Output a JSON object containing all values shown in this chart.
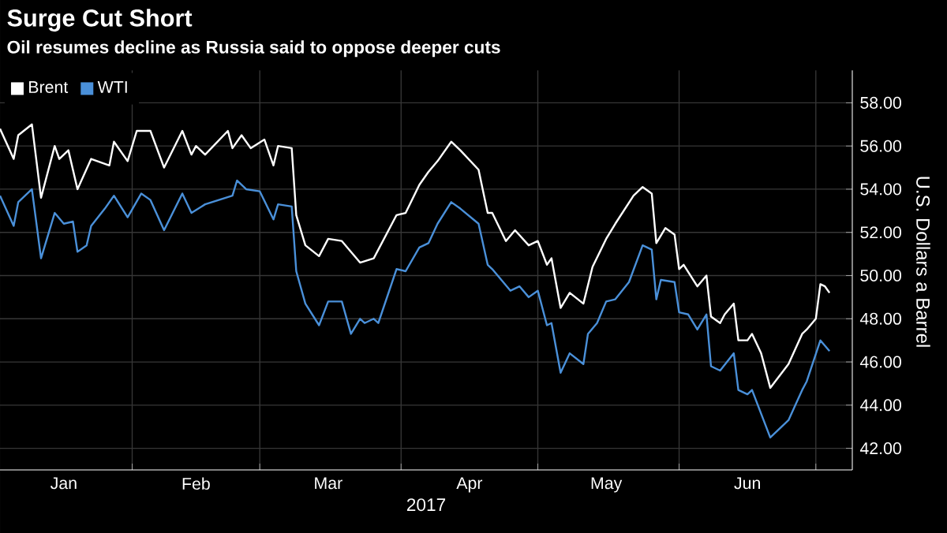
{
  "chart_data": {
    "type": "line",
    "title": "Surge Cut Short",
    "subtitle": "Oil resumes decline as Russia said to oppose deeper cuts",
    "xlabel": "2017",
    "ylabel": "U.S. Dollars a Barrel",
    "xlim": [
      "2017-01-03",
      "2017-07-09"
    ],
    "ylim": [
      41,
      59.5
    ],
    "xticks": [
      {
        "value": "2017-02-01",
        "label": null
      },
      {
        "value": "2017-03-01",
        "label": null
      },
      {
        "value": "2017-04-01",
        "label": null
      },
      {
        "value": "2017-05-01",
        "label": null
      },
      {
        "value": "2017-06-01",
        "label": null
      },
      {
        "value": "2017-07-01",
        "label": null
      },
      {
        "value": "2017-01-17",
        "label": "Jan"
      },
      {
        "value": "2017-02-15",
        "label": "Feb"
      },
      {
        "value": "2017-03-16",
        "label": "Mar"
      },
      {
        "value": "2017-04-16",
        "label": "Apr"
      },
      {
        "value": "2017-05-16",
        "label": "May"
      },
      {
        "value": "2017-06-16",
        "label": "Jun"
      }
    ],
    "yticks": [
      {
        "value": 42,
        "label": "42.00"
      },
      {
        "value": 44,
        "label": "44.00"
      },
      {
        "value": 46,
        "label": "46.00"
      },
      {
        "value": 48,
        "label": "48.00"
      },
      {
        "value": 50,
        "label": "50.00"
      },
      {
        "value": 52,
        "label": "52.00"
      },
      {
        "value": 54,
        "label": "54.00"
      },
      {
        "value": 56,
        "label": "56.00"
      },
      {
        "value": 58,
        "label": "58.00"
      }
    ],
    "grid": true,
    "legend": "top left",
    "series": [
      {
        "name": "Brent",
        "color": "#ffffff",
        "x": [
          "2017-01-03",
          "2017-01-06",
          "2017-01-07",
          "2017-01-10",
          "2017-01-12",
          "2017-01-15",
          "2017-01-16",
          "2017-01-18",
          "2017-01-20",
          "2017-01-23",
          "2017-01-27",
          "2017-01-28",
          "2017-01-31",
          "2017-02-02",
          "2017-02-05",
          "2017-02-08",
          "2017-02-12",
          "2017-02-14",
          "2017-02-15",
          "2017-02-17",
          "2017-02-22",
          "2017-02-23",
          "2017-02-25",
          "2017-02-27",
          "2017-03-02",
          "2017-03-04",
          "2017-03-05",
          "2017-03-08",
          "2017-03-09",
          "2017-03-11",
          "2017-03-14",
          "2017-03-16",
          "2017-03-19",
          "2017-03-23",
          "2017-03-26",
          "2017-03-31",
          "2017-04-02",
          "2017-04-05",
          "2017-04-07",
          "2017-04-09",
          "2017-04-12",
          "2017-04-14",
          "2017-04-18",
          "2017-04-20",
          "2017-04-21",
          "2017-04-24",
          "2017-04-26",
          "2017-04-29",
          "2017-05-01",
          "2017-05-03",
          "2017-05-04",
          "2017-05-06",
          "2017-05-08",
          "2017-05-11",
          "2017-05-13",
          "2017-05-16",
          "2017-05-18",
          "2017-05-22",
          "2017-05-24",
          "2017-05-26",
          "2017-05-27",
          "2017-05-29",
          "2017-05-31",
          "2017-06-01",
          "2017-06-02",
          "2017-06-05",
          "2017-06-07",
          "2017-06-08",
          "2017-06-10",
          "2017-06-11",
          "2017-06-13",
          "2017-06-14",
          "2017-06-16",
          "2017-06-17",
          "2017-06-19",
          "2017-06-21",
          "2017-06-25",
          "2017-06-28",
          "2017-06-29",
          "2017-07-01",
          "2017-07-02",
          "2017-07-03",
          "2017-07-04"
        ],
        "values": [
          56.8,
          55.4,
          56.5,
          57.0,
          53.6,
          56.0,
          55.4,
          55.8,
          54.0,
          55.4,
          55.1,
          56.2,
          55.3,
          56.7,
          56.7,
          55.0,
          56.7,
          55.6,
          56.0,
          55.6,
          56.7,
          55.9,
          56.5,
          55.9,
          56.3,
          55.1,
          56.0,
          55.9,
          52.8,
          51.4,
          50.9,
          51.7,
          51.6,
          50.6,
          50.8,
          52.8,
          52.9,
          54.2,
          54.8,
          55.3,
          56.2,
          55.8,
          54.9,
          52.9,
          52.9,
          51.6,
          52.1,
          51.4,
          51.6,
          50.5,
          50.8,
          48.5,
          49.2,
          48.7,
          50.4,
          51.7,
          52.4,
          53.7,
          54.1,
          53.8,
          51.5,
          52.2,
          51.9,
          50.3,
          50.5,
          49.5,
          50.0,
          48.1,
          47.8,
          48.2,
          48.7,
          47.0,
          47.0,
          47.3,
          46.4,
          44.8,
          45.9,
          47.3,
          47.5,
          48.0,
          49.6,
          49.5,
          49.2
        ]
      },
      {
        "name": "WTI",
        "color": "#4a90d9",
        "x": [
          "2017-01-03",
          "2017-01-06",
          "2017-01-07",
          "2017-01-10",
          "2017-01-12",
          "2017-01-15",
          "2017-01-17",
          "2017-01-19",
          "2017-01-20",
          "2017-01-22",
          "2017-01-23",
          "2017-01-26",
          "2017-01-28",
          "2017-01-31",
          "2017-02-03",
          "2017-02-05",
          "2017-02-08",
          "2017-02-12",
          "2017-02-14",
          "2017-02-17",
          "2017-02-20",
          "2017-02-23",
          "2017-02-24",
          "2017-02-26",
          "2017-03-01",
          "2017-03-04",
          "2017-03-05",
          "2017-03-08",
          "2017-03-09",
          "2017-03-11",
          "2017-03-14",
          "2017-03-16",
          "2017-03-19",
          "2017-03-21",
          "2017-03-23",
          "2017-03-24",
          "2017-03-26",
          "2017-03-27",
          "2017-03-31",
          "2017-04-02",
          "2017-04-05",
          "2017-04-07",
          "2017-04-09",
          "2017-04-12",
          "2017-04-14",
          "2017-04-18",
          "2017-04-20",
          "2017-04-21",
          "2017-04-25",
          "2017-04-27",
          "2017-04-29",
          "2017-05-01",
          "2017-05-03",
          "2017-05-04",
          "2017-05-06",
          "2017-05-08",
          "2017-05-11",
          "2017-05-12",
          "2017-05-14",
          "2017-05-16",
          "2017-05-18",
          "2017-05-21",
          "2017-05-24",
          "2017-05-26",
          "2017-05-27",
          "2017-05-28",
          "2017-05-31",
          "2017-06-01",
          "2017-06-03",
          "2017-06-05",
          "2017-06-07",
          "2017-06-08",
          "2017-06-10",
          "2017-06-13",
          "2017-06-14",
          "2017-06-16",
          "2017-06-17",
          "2017-06-21",
          "2017-06-25",
          "2017-06-28",
          "2017-06-29",
          "2017-07-02",
          "2017-07-04"
        ],
        "values": [
          53.7,
          52.3,
          53.4,
          54.0,
          50.8,
          52.9,
          52.4,
          52.5,
          51.1,
          51.4,
          52.3,
          53.1,
          53.7,
          52.7,
          53.8,
          53.5,
          52.1,
          53.8,
          52.9,
          53.3,
          53.5,
          53.7,
          54.4,
          54.0,
          53.9,
          52.6,
          53.3,
          53.2,
          50.2,
          48.7,
          47.7,
          48.8,
          48.8,
          47.3,
          48.0,
          47.8,
          48.0,
          47.8,
          50.3,
          50.2,
          51.3,
          51.5,
          52.4,
          53.4,
          53.1,
          52.4,
          50.5,
          50.3,
          49.3,
          49.5,
          49.0,
          49.3,
          47.7,
          47.8,
          45.5,
          46.4,
          45.9,
          47.3,
          47.8,
          48.8,
          48.9,
          49.7,
          51.4,
          51.2,
          48.9,
          49.8,
          49.7,
          48.3,
          48.2,
          47.5,
          48.2,
          45.8,
          45.6,
          46.4,
          44.7,
          44.5,
          44.7,
          42.5,
          43.3,
          44.7,
          45.1,
          47.0,
          46.5
        ]
      }
    ]
  }
}
